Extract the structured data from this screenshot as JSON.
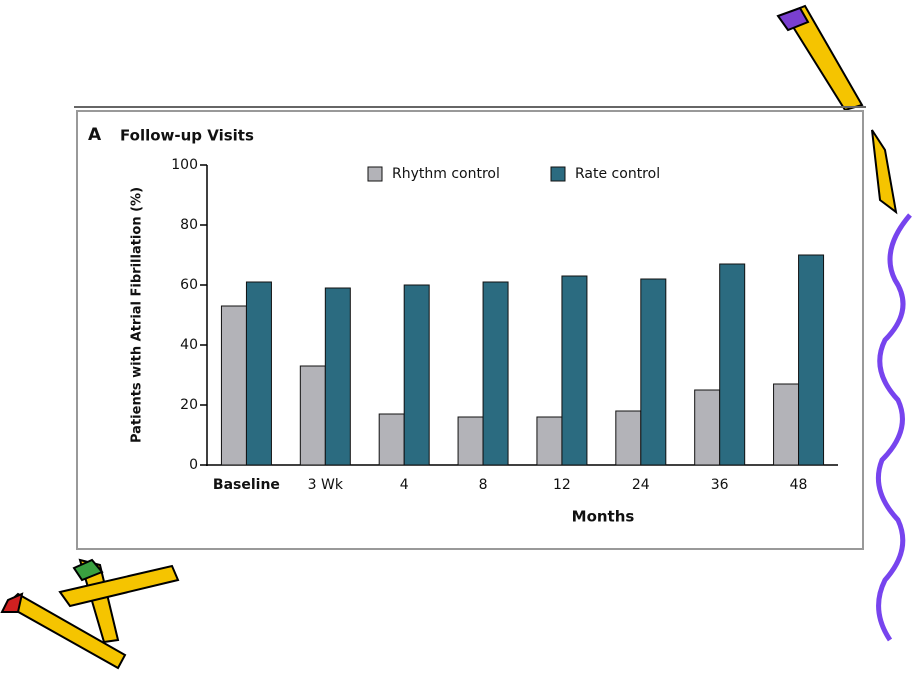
{
  "chart_data": {
    "type": "bar",
    "panel_label": "A",
    "title": "Follow-up Visits",
    "y_label": "Patients with Atrial Fibrillation (%)",
    "x_label": "Months",
    "categories": [
      "Baseline",
      "3 Wk",
      "4",
      "8",
      "12",
      "24",
      "36",
      "48"
    ],
    "series": [
      {
        "name": "Rhythm control",
        "color": "#b3b3b8",
        "values": [
          53,
          33,
          17,
          16,
          16,
          18,
          25,
          27
        ]
      },
      {
        "name": "Rate control",
        "color": "#2b6b80",
        "values": [
          61,
          59,
          60,
          61,
          63,
          62,
          67,
          70
        ]
      }
    ],
    "ylim": [
      0,
      100
    ],
    "yticks": [
      0,
      20,
      40,
      60,
      80,
      100
    ],
    "grid": false
  }
}
